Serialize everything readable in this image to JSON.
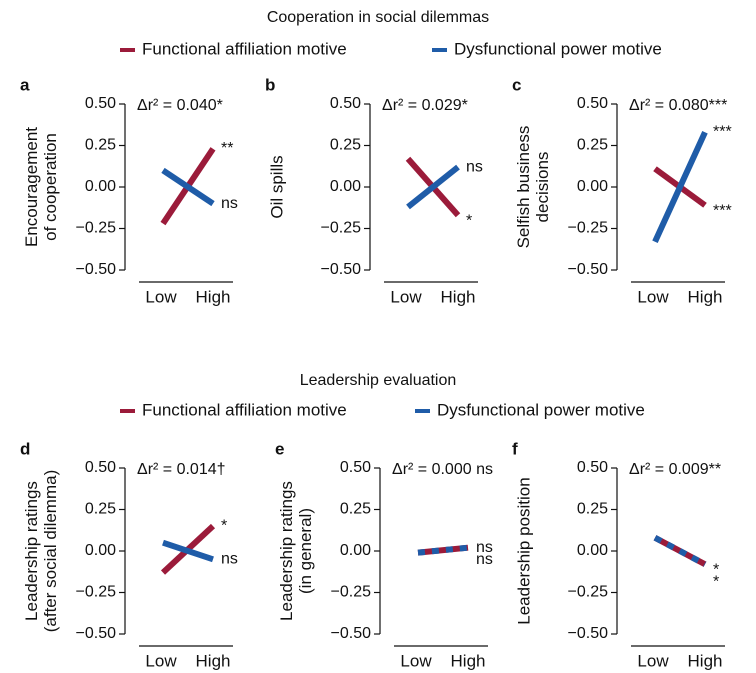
{
  "sections": [
    {
      "title": "Cooperation in social dilemmas"
    },
    {
      "title": "Leadership evaluation"
    }
  ],
  "chart_data": [
    {
      "type": "line",
      "panel": "a",
      "ylabel": [
        "Encouragement",
        "of cooperation"
      ],
      "annotation": "Δr² = 0.040*",
      "categories": [
        "Low",
        "High"
      ],
      "series": [
        {
          "name": "Functional affiliation motive",
          "color": "#9b1b3a",
          "values": [
            -0.22,
            0.23
          ],
          "value_labels": [
            null,
            "**"
          ]
        },
        {
          "name": "Dysfunctional power motive",
          "color": "#1f5ca8",
          "values": [
            0.1,
            -0.1
          ],
          "value_labels": [
            null,
            "ns"
          ]
        }
      ],
      "ylim": [
        -0.5,
        0.5
      ],
      "yticks": [
        {
          "value": 0.5,
          "label": "0.50"
        },
        {
          "value": 0.25,
          "label": "0.25"
        },
        {
          "value": 0,
          "label": "0.00"
        },
        {
          "value": -0.25,
          "label": "−0.25"
        },
        {
          "value": -0.5,
          "label": "−0.50"
        }
      ]
    },
    {
      "type": "line",
      "panel": "b",
      "ylabel": [
        "Oil spills"
      ],
      "annotation": "Δr² = 0.029*",
      "categories": [
        "Low",
        "High"
      ],
      "series": [
        {
          "name": "Functional affiliation motive",
          "color": "#9b1b3a",
          "values": [
            0.17,
            -0.17
          ],
          "value_labels": [
            null,
            "*"
          ]
        },
        {
          "name": "Dysfunctional power motive",
          "color": "#1f5ca8",
          "values": [
            -0.12,
            0.12
          ],
          "value_labels": [
            null,
            "ns"
          ]
        }
      ],
      "ylim": [
        -0.5,
        0.5
      ],
      "yticks": [
        {
          "value": 0.5,
          "label": "0.50"
        },
        {
          "value": 0.25,
          "label": "0.25"
        },
        {
          "value": 0,
          "label": "0.00"
        },
        {
          "value": -0.25,
          "label": "−0.25"
        },
        {
          "value": -0.5,
          "label": "−0.50"
        }
      ]
    },
    {
      "type": "line",
      "panel": "c",
      "ylabel": [
        "Selfish business",
        "decisions"
      ],
      "annotation": "Δr² = 0.080***",
      "categories": [
        "Low",
        "High"
      ],
      "series": [
        {
          "name": "Functional affiliation motive",
          "color": "#9b1b3a",
          "values": [
            0.11,
            -0.11
          ],
          "value_labels": [
            null,
            "***"
          ]
        },
        {
          "name": "Dysfunctional power motive",
          "color": "#1f5ca8",
          "values": [
            -0.33,
            0.33
          ],
          "value_labels": [
            null,
            "***"
          ]
        }
      ],
      "ylim": [
        -0.5,
        0.5
      ],
      "yticks": [
        {
          "value": 0.5,
          "label": "0.50"
        },
        {
          "value": 0.25,
          "label": "0.25"
        },
        {
          "value": 0,
          "label": "0.00"
        },
        {
          "value": -0.25,
          "label": "−0.25"
        },
        {
          "value": -0.5,
          "label": "−0.50"
        }
      ]
    },
    {
      "type": "line",
      "panel": "d",
      "ylabel": [
        "Leadership ratings",
        "(after social dilemma)"
      ],
      "annotation": "Δr² = 0.014†",
      "categories": [
        "Low",
        "High"
      ],
      "series": [
        {
          "name": "Functional affiliation motive",
          "color": "#9b1b3a",
          "values": [
            -0.13,
            0.15
          ],
          "value_labels": [
            null,
            "*"
          ]
        },
        {
          "name": "Dysfunctional power motive",
          "color": "#1f5ca8",
          "values": [
            0.05,
            -0.05
          ],
          "value_labels": [
            null,
            "ns"
          ]
        }
      ],
      "ylim": [
        -0.5,
        0.5
      ],
      "yticks": [
        {
          "value": 0.5,
          "label": "0.50"
        },
        {
          "value": 0.25,
          "label": "0.25"
        },
        {
          "value": 0,
          "label": "0.00"
        },
        {
          "value": -0.25,
          "label": "−0.25"
        },
        {
          "value": -0.5,
          "label": "−0.50"
        }
      ]
    },
    {
      "type": "line",
      "panel": "e",
      "ylabel": [
        "Leadership ratings",
        "(in general)"
      ],
      "annotation": "Δr² = 0.000 ns",
      "categories": [
        "Low",
        "High"
      ],
      "series": [
        {
          "name": "Functional affiliation motive",
          "color": "#9b1b3a",
          "values": [
            -0.01,
            0.02
          ],
          "value_labels": [
            null,
            "ns"
          ]
        },
        {
          "name": "Dysfunctional power motive",
          "color": "#1f5ca8",
          "values": [
            -0.01,
            0.02
          ],
          "value_labels": [
            null,
            "ns"
          ]
        }
      ],
      "ylim": [
        -0.5,
        0.5
      ],
      "yticks": [
        {
          "value": 0.5,
          "label": "0.50"
        },
        {
          "value": 0.25,
          "label": "0.25"
        },
        {
          "value": 0,
          "label": "0.00"
        },
        {
          "value": -0.25,
          "label": "−0.25"
        },
        {
          "value": -0.5,
          "label": "−0.50"
        }
      ]
    },
    {
      "type": "line",
      "panel": "f",
      "ylabel": [
        "Leadership position"
      ],
      "annotation": "Δr² = 0.009**",
      "categories": [
        "Low",
        "High"
      ],
      "series": [
        {
          "name": "Functional affiliation motive",
          "color": "#9b1b3a",
          "values": [
            0.08,
            -0.08
          ],
          "value_labels": [
            null,
            "*"
          ]
        },
        {
          "name": "Dysfunctional power motive",
          "color": "#1f5ca8",
          "values": [
            0.08,
            -0.08
          ],
          "value_labels": [
            null,
            "*"
          ]
        }
      ],
      "ylim": [
        -0.5,
        0.5
      ],
      "yticks": [
        {
          "value": 0.5,
          "label": "0.50"
        },
        {
          "value": 0.25,
          "label": "0.25"
        },
        {
          "value": 0,
          "label": "0.00"
        },
        {
          "value": -0.25,
          "label": "−0.25"
        },
        {
          "value": -0.5,
          "label": "−0.50"
        }
      ]
    }
  ]
}
